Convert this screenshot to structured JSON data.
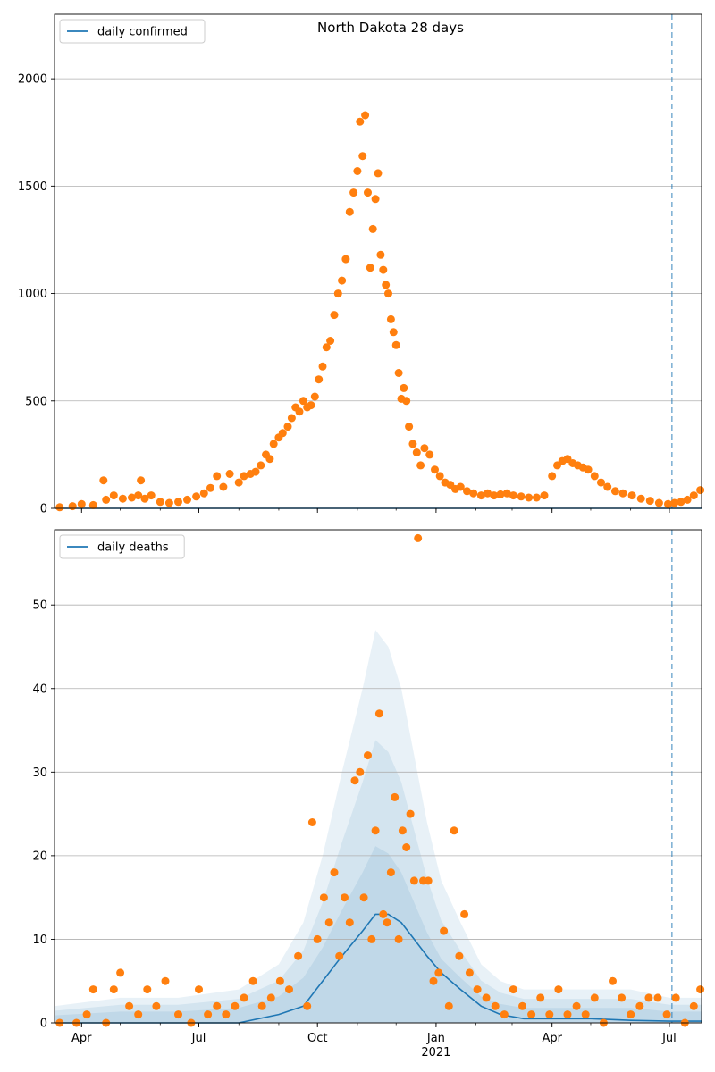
{
  "chart_data": [
    {
      "type": "scatter",
      "title": "North Dakota 28 days",
      "legend": {
        "placement": "top-left",
        "entries": [
          "daily confirmed"
        ]
      },
      "xlabel": "",
      "ylabel": "",
      "x_ticks": [
        {
          "date": "2020-04-01",
          "label": "Apr"
        },
        {
          "date": "2020-07-01",
          "label": "Jul"
        },
        {
          "date": "2020-10-01",
          "label": "Oct"
        },
        {
          "date": "2021-01-01",
          "label": "Jan"
        },
        {
          "date": "2021-04-01",
          "label": "Apr"
        },
        {
          "date": "2021-07-01",
          "label": "Jul"
        }
      ],
      "x_range": [
        "2020-03-11",
        "2021-07-26"
      ],
      "ylim": [
        0,
        2300
      ],
      "y_ticks": [
        0,
        500,
        1000,
        1500,
        2000
      ],
      "grid": "horizontal",
      "vline_date": "2021-07-03",
      "series": [
        {
          "name": "daily confirmed",
          "type": "line",
          "color": "#1f77b4",
          "x": [
            "2020-03-11",
            "2021-07-26"
          ],
          "values": [
            0,
            0
          ]
        },
        {
          "type": "scatter",
          "color": "#ff7f0e",
          "x": [
            "2020-03-15",
            "2020-03-25",
            "2020-04-01",
            "2020-04-10",
            "2020-04-18",
            "2020-04-20",
            "2020-04-26",
            "2020-05-03",
            "2020-05-10",
            "2020-05-15",
            "2020-05-17",
            "2020-05-20",
            "2020-05-25",
            "2020-06-01",
            "2020-06-08",
            "2020-06-15",
            "2020-06-22",
            "2020-06-29",
            "2020-07-05",
            "2020-07-10",
            "2020-07-15",
            "2020-07-20",
            "2020-07-25",
            "2020-08-01",
            "2020-08-05",
            "2020-08-10",
            "2020-08-14",
            "2020-08-18",
            "2020-08-22",
            "2020-08-25",
            "2020-08-28",
            "2020-09-01",
            "2020-09-04",
            "2020-09-08",
            "2020-09-11",
            "2020-09-14",
            "2020-09-17",
            "2020-09-20",
            "2020-09-23",
            "2020-09-26",
            "2020-09-29",
            "2020-10-02",
            "2020-10-05",
            "2020-10-08",
            "2020-10-11",
            "2020-10-14",
            "2020-10-17",
            "2020-10-20",
            "2020-10-23",
            "2020-10-26",
            "2020-10-29",
            "2020-11-01",
            "2020-11-03",
            "2020-11-05",
            "2020-11-07",
            "2020-11-09",
            "2020-11-11",
            "2020-11-13",
            "2020-11-15",
            "2020-11-17",
            "2020-11-19",
            "2020-11-21",
            "2020-11-23",
            "2020-11-25",
            "2020-11-27",
            "2020-11-29",
            "2020-12-01",
            "2020-12-03",
            "2020-12-05",
            "2020-12-07",
            "2020-12-09",
            "2020-12-11",
            "2020-12-14",
            "2020-12-17",
            "2020-12-20",
            "2020-12-23",
            "2020-12-27",
            "2020-12-31",
            "2021-01-04",
            "2021-01-08",
            "2021-01-12",
            "2021-01-16",
            "2021-01-20",
            "2021-01-25",
            "2021-01-30",
            "2021-02-05",
            "2021-02-10",
            "2021-02-15",
            "2021-02-20",
            "2021-02-25",
            "2021-03-02",
            "2021-03-08",
            "2021-03-14",
            "2021-03-20",
            "2021-03-26",
            "2021-04-01",
            "2021-04-05",
            "2021-04-09",
            "2021-04-13",
            "2021-04-17",
            "2021-04-21",
            "2021-04-25",
            "2021-04-29",
            "2021-05-04",
            "2021-05-09",
            "2021-05-14",
            "2021-05-20",
            "2021-05-26",
            "2021-06-02",
            "2021-06-09",
            "2021-06-16",
            "2021-06-23",
            "2021-06-30",
            "2021-07-05",
            "2021-07-10",
            "2021-07-15",
            "2021-07-20",
            "2021-07-25"
          ],
          "values": [
            5,
            10,
            20,
            15,
            130,
            40,
            60,
            45,
            50,
            60,
            130,
            45,
            60,
            30,
            25,
            30,
            40,
            55,
            70,
            95,
            150,
            100,
            160,
            120,
            150,
            160,
            170,
            200,
            250,
            230,
            300,
            330,
            350,
            380,
            420,
            470,
            450,
            500,
            470,
            480,
            520,
            600,
            660,
            750,
            780,
            900,
            1000,
            1060,
            1160,
            1380,
            1470,
            1570,
            1800,
            1640,
            1830,
            1470,
            1120,
            1300,
            1440,
            1560,
            1180,
            1110,
            1040,
            1000,
            880,
            820,
            760,
            630,
            510,
            560,
            500,
            380,
            300,
            260,
            200,
            280,
            250,
            180,
            150,
            120,
            110,
            90,
            100,
            80,
            70,
            60,
            70,
            60,
            65,
            70,
            60,
            55,
            50,
            50,
            60,
            150,
            200,
            220,
            230,
            210,
            200,
            190,
            180,
            150,
            120,
            100,
            80,
            70,
            60,
            45,
            35,
            25,
            20,
            25,
            30,
            40,
            60,
            85
          ]
        }
      ]
    },
    {
      "type": "scatter",
      "title": "",
      "legend": {
        "placement": "top-left",
        "entries": [
          "daily deaths"
        ]
      },
      "xlabel": "",
      "ylabel": "",
      "x_ticks": [
        {
          "date": "2020-04-01",
          "label": "Apr"
        },
        {
          "date": "2020-07-01",
          "label": "Jul"
        },
        {
          "date": "2020-10-01",
          "label": "Oct"
        },
        {
          "date": "2021-01-01",
          "label": "Jan",
          "sublabel": "2021"
        },
        {
          "date": "2021-04-01",
          "label": "Apr"
        },
        {
          "date": "2021-07-01",
          "label": "Jul"
        }
      ],
      "x_range": [
        "2020-03-11",
        "2021-07-26"
      ],
      "ylim": [
        0,
        59
      ],
      "y_ticks": [
        0,
        10,
        20,
        30,
        40,
        50
      ],
      "grid": "horizontal",
      "vline_date": "2021-07-03",
      "series": [
        {
          "name": "daily deaths",
          "type": "line",
          "color": "#1f77b4",
          "x": [
            "2020-03-11",
            "2020-05-01",
            "2020-06-15",
            "2020-08-01",
            "2020-09-01",
            "2020-09-20",
            "2020-10-05",
            "2020-10-20",
            "2020-11-05",
            "2020-11-15",
            "2020-11-25",
            "2020-12-05",
            "2020-12-15",
            "2020-12-25",
            "2021-01-05",
            "2021-01-20",
            "2021-02-05",
            "2021-02-20",
            "2021-03-10",
            "2021-04-01",
            "2021-05-01",
            "2021-06-01",
            "2021-07-01",
            "2021-07-26"
          ],
          "values": [
            0,
            0,
            0,
            0,
            1,
            2,
            5,
            8,
            11,
            13,
            13,
            12,
            10,
            8,
            6,
            4,
            2,
            1,
            0.5,
            0.5,
            0.5,
            0.3,
            0.2,
            0.2
          ]
        },
        {
          "type": "band",
          "name": "uncertainty",
          "x": [
            "2020-03-11",
            "2020-05-01",
            "2020-06-15",
            "2020-08-01",
            "2020-09-01",
            "2020-09-20",
            "2020-10-05",
            "2020-10-20",
            "2020-11-05",
            "2020-11-15",
            "2020-11-25",
            "2020-12-05",
            "2020-12-15",
            "2020-12-25",
            "2021-01-05",
            "2021-01-20",
            "2021-02-05",
            "2021-02-20",
            "2021-03-10",
            "2021-04-01",
            "2021-05-01",
            "2021-06-01",
            "2021-07-01",
            "2021-07-26"
          ],
          "outer_upper": [
            2,
            3,
            3,
            4,
            7,
            12,
            20,
            30,
            40,
            47,
            45,
            40,
            32,
            24,
            17,
            12,
            7,
            5,
            4,
            4,
            4,
            4,
            3,
            3
          ]
        },
        {
          "type": "scatter",
          "color": "#ff7f0e",
          "x": [
            "2020-03-15",
            "2020-03-28",
            "2020-04-05",
            "2020-04-10",
            "2020-04-20",
            "2020-04-26",
            "2020-05-01",
            "2020-05-08",
            "2020-05-15",
            "2020-05-22",
            "2020-05-29",
            "2020-06-05",
            "2020-06-15",
            "2020-06-25",
            "2020-07-01",
            "2020-07-08",
            "2020-07-15",
            "2020-07-22",
            "2020-07-29",
            "2020-08-05",
            "2020-08-12",
            "2020-08-19",
            "2020-08-26",
            "2020-09-02",
            "2020-09-09",
            "2020-09-16",
            "2020-09-23",
            "2020-09-27",
            "2020-10-01",
            "2020-10-06",
            "2020-10-10",
            "2020-10-14",
            "2020-10-18",
            "2020-10-22",
            "2020-10-26",
            "2020-10-30",
            "2020-11-03",
            "2020-11-06",
            "2020-11-09",
            "2020-11-12",
            "2020-11-15",
            "2020-11-18",
            "2020-11-21",
            "2020-11-24",
            "2020-11-27",
            "2020-11-30",
            "2020-12-03",
            "2020-12-06",
            "2020-12-09",
            "2020-12-12",
            "2020-12-15",
            "2020-12-18",
            "2020-12-22",
            "2020-12-26",
            "2020-12-30",
            "2021-01-03",
            "2021-01-07",
            "2021-01-11",
            "2021-01-15",
            "2021-01-19",
            "2021-01-23",
            "2021-01-27",
            "2021-02-02",
            "2021-02-09",
            "2021-02-16",
            "2021-02-23",
            "2021-03-02",
            "2021-03-09",
            "2021-03-16",
            "2021-03-23",
            "2021-03-30",
            "2021-04-06",
            "2021-04-13",
            "2021-04-20",
            "2021-04-27",
            "2021-05-04",
            "2021-05-11",
            "2021-05-18",
            "2021-05-25",
            "2021-06-01",
            "2021-06-08",
            "2021-06-15",
            "2021-06-22",
            "2021-06-29",
            "2021-07-06",
            "2021-07-13",
            "2021-07-20",
            "2021-07-25"
          ],
          "values": [
            0,
            0,
            1,
            4,
            0,
            4,
            6,
            2,
            1,
            4,
            2,
            5,
            1,
            0,
            4,
            1,
            2,
            1,
            2,
            3,
            5,
            2,
            3,
            5,
            4,
            8,
            2,
            24,
            10,
            15,
            12,
            18,
            8,
            15,
            12,
            29,
            30,
            15,
            32,
            10,
            23,
            37,
            13,
            12,
            18,
            27,
            10,
            23,
            21,
            25,
            17,
            58,
            17,
            17,
            5,
            6,
            11,
            2,
            23,
            8,
            13,
            6,
            4,
            3,
            2,
            1,
            4,
            2,
            1,
            3,
            1,
            4,
            1,
            2,
            1,
            3,
            0,
            5,
            3,
            1,
            2,
            3,
            3,
            1,
            3,
            0,
            2,
            4
          ]
        }
      ]
    }
  ]
}
